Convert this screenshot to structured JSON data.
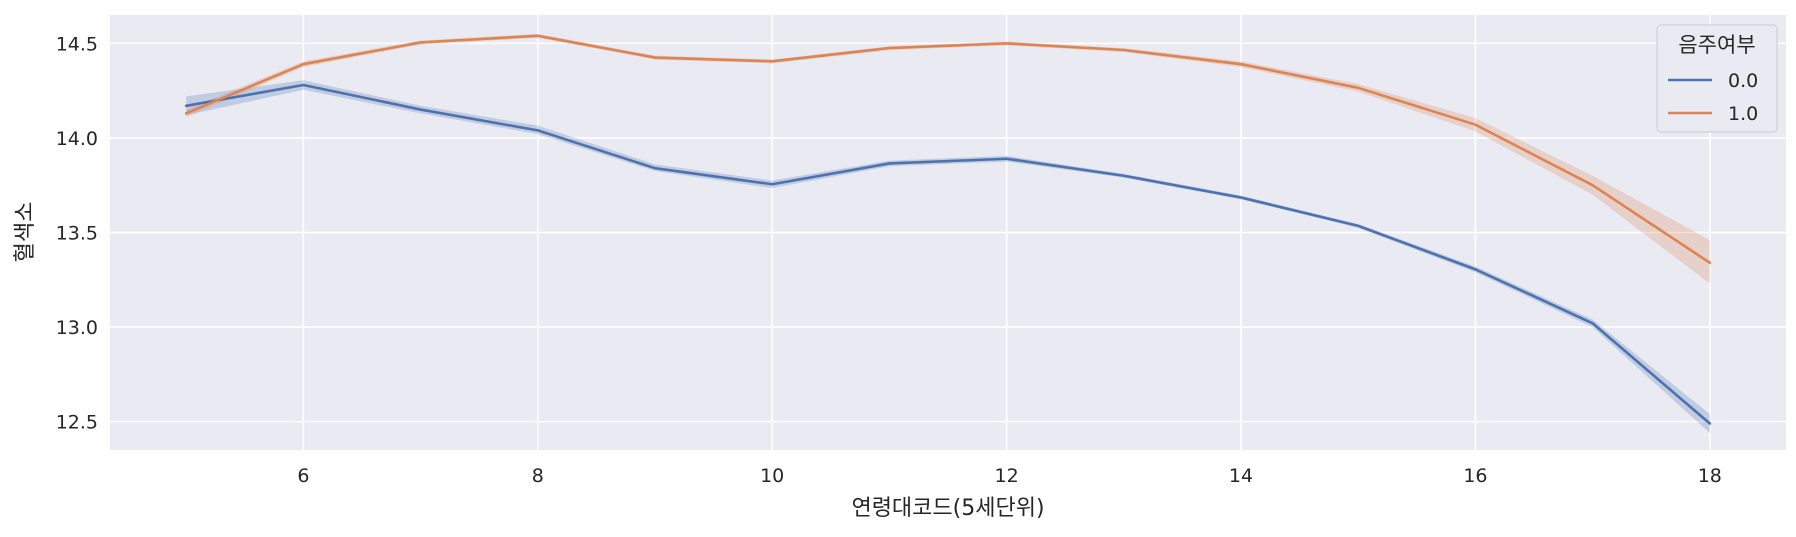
{
  "chart_data": {
    "type": "line",
    "xlabel": "연령대코드(5세단위)",
    "ylabel": "혈색소",
    "xlim": [
      4.35,
      18.65
    ],
    "ylim": [
      12.35,
      14.65
    ],
    "xticks": [
      6,
      8,
      10,
      12,
      14,
      16,
      18
    ],
    "yticks": [
      12.5,
      13.0,
      13.5,
      14.0,
      14.5
    ],
    "grid": true,
    "legend": {
      "title": "음주여부",
      "placement": "top-right"
    },
    "x": [
      5,
      6,
      7,
      8,
      9,
      10,
      11,
      12,
      13,
      14,
      15,
      16,
      17,
      18
    ],
    "series": [
      {
        "name": "0.0",
        "color": "#4c72b0",
        "values": [
          14.17,
          14.28,
          14.15,
          14.04,
          13.84,
          13.755,
          13.865,
          13.89,
          13.8,
          13.685,
          13.535,
          13.305,
          13.02,
          12.49
        ],
        "ci_low": [
          14.12,
          14.255,
          14.13,
          14.02,
          13.825,
          13.735,
          13.85,
          13.875,
          13.79,
          13.675,
          13.525,
          13.29,
          13.0,
          12.44
        ],
        "ci_high": [
          14.22,
          14.305,
          14.17,
          14.065,
          13.86,
          13.775,
          13.88,
          13.905,
          13.81,
          13.695,
          13.545,
          13.32,
          13.04,
          12.54
        ]
      },
      {
        "name": "1.0",
        "color": "#dd8452",
        "values": [
          14.13,
          14.39,
          14.505,
          14.54,
          14.425,
          14.405,
          14.475,
          14.5,
          14.465,
          14.39,
          14.265,
          14.07,
          13.75,
          13.34
        ],
        "ci_low": [
          14.11,
          14.375,
          14.495,
          14.53,
          14.415,
          14.395,
          14.465,
          14.49,
          14.455,
          14.375,
          14.245,
          14.035,
          13.7,
          13.23
        ],
        "ci_high": [
          14.15,
          14.405,
          14.515,
          14.55,
          14.435,
          14.415,
          14.485,
          14.51,
          14.475,
          14.405,
          14.285,
          14.105,
          13.8,
          13.46
        ]
      }
    ]
  }
}
